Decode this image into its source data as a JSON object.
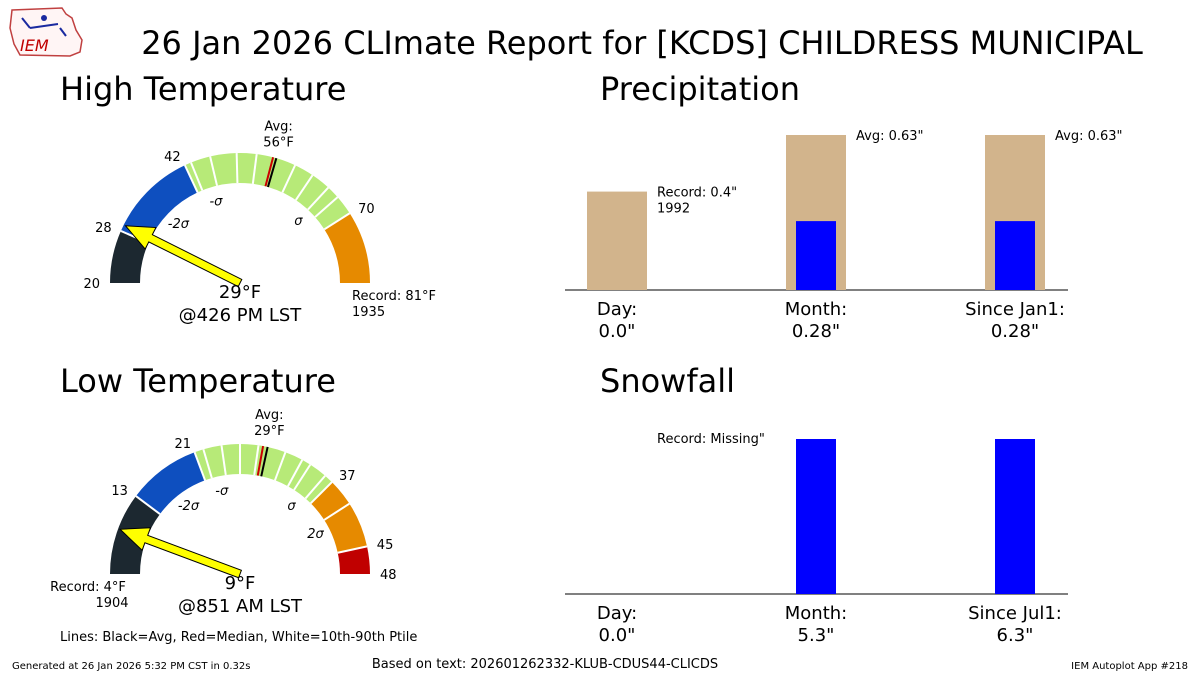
{
  "header": {
    "logo_text": "IEM",
    "title": "26 Jan 2026 CLImate Report for [KCDS] CHILDRESS MUNICIPAL"
  },
  "footer": {
    "generated": "Generated at 26 Jan 2026 5:32 PM CST in 0.32s",
    "based_on": "Based on text: 202601262332-KLUB-CDUS44-CLICDS",
    "app": "IEM Autoplot App #218"
  },
  "gauges_legend": "Lines: Black=Avg, Red=Median, White=10th-90th Ptile",
  "colors": {
    "below_2sigma": "#1c2830",
    "below_sigma": "#0e4fbf",
    "normal": "#b7ea78",
    "above_sigma": "#e68a00",
    "above_2sigma": "#c00000",
    "needle": "#ffff00",
    "record_bar": "#d2b48c",
    "obs_bar": "#0000ff"
  },
  "chart_data": [
    {
      "type": "gauge",
      "title": "High Temperature",
      "range": [
        20,
        81
      ],
      "range_labels": [
        "20",
        "81"
      ],
      "ticks": [
        {
          "value": 20,
          "label": "20"
        },
        {
          "value": 28,
          "label": "28"
        },
        {
          "value": 42,
          "label": "42"
        },
        {
          "value": 70,
          "label": "70"
        }
      ],
      "bands": [
        {
          "from": 20,
          "to": 28,
          "color": "#1c2830"
        },
        {
          "from": 28,
          "to": 42,
          "color": "#0e4fbf"
        },
        {
          "from": 42,
          "to": 70,
          "color": "#b7ea78"
        },
        {
          "from": 70,
          "to": 81,
          "color": "#e68a00"
        }
      ],
      "sigma_labels": [
        {
          "value": 35,
          "label": "-2σ"
        },
        {
          "value": 45,
          "label": "-σ"
        },
        {
          "value": 65,
          "label": "σ"
        }
      ],
      "ptile_lines": [
        43,
        46,
        50,
        53,
        59,
        62,
        65,
        67
      ],
      "avg": 56,
      "median": 55.5,
      "avg_label": "Avg:",
      "avg_value": "56°F",
      "observed": 29,
      "observed_label": "29°F",
      "time_label": "@426 PM LST",
      "record_label": "Record: 81°F",
      "record_year": "1935",
      "record_side": "right"
    },
    {
      "type": "gauge",
      "title": "Low Temperature",
      "range": [
        4,
        48
      ],
      "range_labels": [
        "4",
        "48"
      ],
      "ticks": [
        {
          "value": 13,
          "label": "13"
        },
        {
          "value": 21,
          "label": "21"
        },
        {
          "value": 37,
          "label": "37"
        },
        {
          "value": 45,
          "label": "45"
        },
        {
          "value": 48,
          "label": "48"
        }
      ],
      "bands": [
        {
          "from": 4,
          "to": 13,
          "color": "#1c2830"
        },
        {
          "from": 13,
          "to": 21,
          "color": "#0e4fbf"
        },
        {
          "from": 21,
          "to": 37,
          "color": "#b7ea78"
        },
        {
          "from": 37,
          "to": 45,
          "color": "#e68a00"
        },
        {
          "from": 45,
          "to": 48,
          "color": "#c00000"
        }
      ],
      "sigma_labels": [
        {
          "value": 17,
          "label": "-2σ"
        },
        {
          "value": 23,
          "label": "-σ"
        },
        {
          "value": 35,
          "label": "σ"
        },
        {
          "value": 41,
          "label": "2σ"
        }
      ],
      "ptile_lines": [
        22,
        24,
        26,
        28,
        31,
        33,
        34,
        36,
        40
      ],
      "avg": 29,
      "median": 28.5,
      "avg_label": "Avg:",
      "avg_value": "29°F",
      "observed": 9,
      "observed_label": "9°F",
      "time_label": "@851 AM LST",
      "record_label": "Record: 4°F",
      "record_year": "1904",
      "record_side": "left"
    },
    {
      "type": "bar",
      "title": "Precipitation",
      "categories": [
        "Day:",
        "Month:",
        "Since Jan1:"
      ],
      "category_values": [
        "0.0\"",
        "0.28\"",
        "0.28\""
      ],
      "observed": [
        0.0,
        0.28,
        0.28
      ],
      "reference": [
        0.4,
        0.63,
        0.63
      ],
      "reference_labels": [
        "Record: 0.4\"",
        "Avg: 0.63\"",
        "Avg: 0.63\""
      ],
      "reference_years": [
        "1992",
        "",
        ""
      ],
      "reference_colors": [
        "#d2b48c",
        "#d2b48c",
        "#d2b48c"
      ],
      "ylim": [
        0,
        0.63
      ]
    },
    {
      "type": "bar",
      "title": "Snowfall",
      "categories": [
        "Day:",
        "Month:",
        "Since Jul1:"
      ],
      "category_values": [
        "0.0\"",
        "5.3\"",
        "6.3\""
      ],
      "observed": [
        0.0,
        5.3,
        6.3
      ],
      "observed_display": [
        0.0,
        1.0,
        1.0
      ],
      "reference": [
        null,
        null,
        null
      ],
      "reference_labels": [
        "Record: Missing\"",
        "",
        ""
      ],
      "reference_years": [
        "",
        "",
        ""
      ],
      "ylim": [
        0,
        1.0
      ]
    }
  ]
}
